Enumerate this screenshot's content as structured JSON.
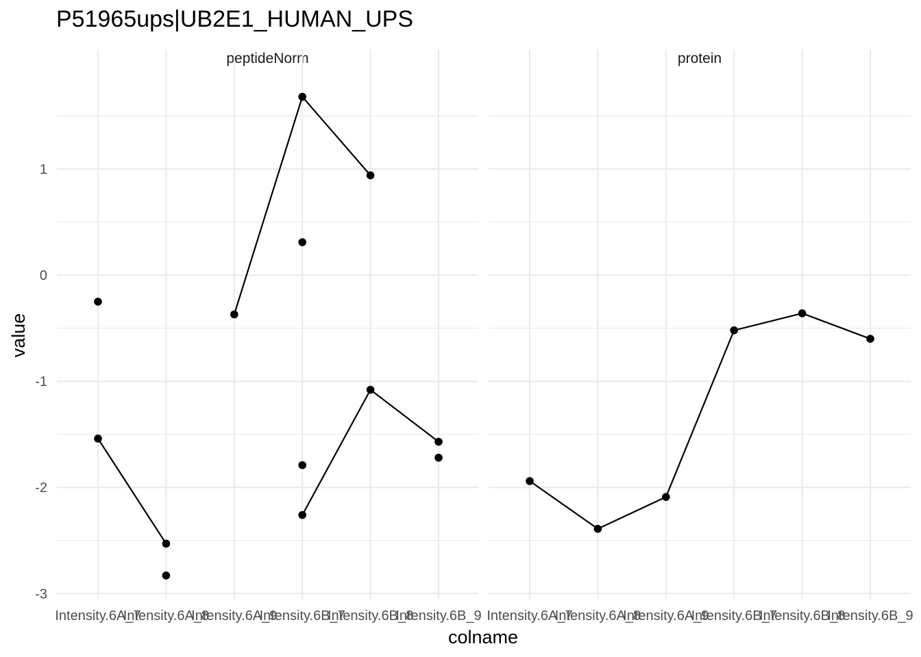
{
  "chart_data": {
    "type": "line",
    "title": "P51965ups|UB2E1_HUMAN_UPS",
    "xlabel": "colname",
    "ylabel": "value",
    "categories": [
      "Intensity.6A_7",
      "Intensity.6A_8",
      "Intensity.6A_9",
      "Intensity.6B_7",
      "Intensity.6B_8",
      "Intensity.6B_9"
    ],
    "ylim": [
      -3,
      1.8
    ],
    "yticks": [
      -3,
      -2,
      -1,
      0,
      1
    ],
    "ytick_labels": [
      "-3",
      "-2",
      "-1",
      "0",
      "1"
    ],
    "grid": true,
    "panels": [
      {
        "name": "peptideNorm",
        "series": [
          {
            "values": [
              -0.25,
              null,
              null,
              0.31,
              null,
              null
            ]
          },
          {
            "values": [
              -1.54,
              -2.53,
              null,
              -2.26,
              -1.08,
              -1.57
            ]
          },
          {
            "values": [
              null,
              -2.83,
              null,
              -1.79,
              null,
              -1.72
            ]
          },
          {
            "values": [
              null,
              null,
              -0.37,
              1.68,
              0.94,
              null
            ]
          }
        ]
      },
      {
        "name": "protein",
        "series": [
          {
            "values": [
              -1.94,
              -2.39,
              -2.09,
              -0.52,
              -0.36,
              -0.6
            ]
          }
        ]
      }
    ]
  }
}
